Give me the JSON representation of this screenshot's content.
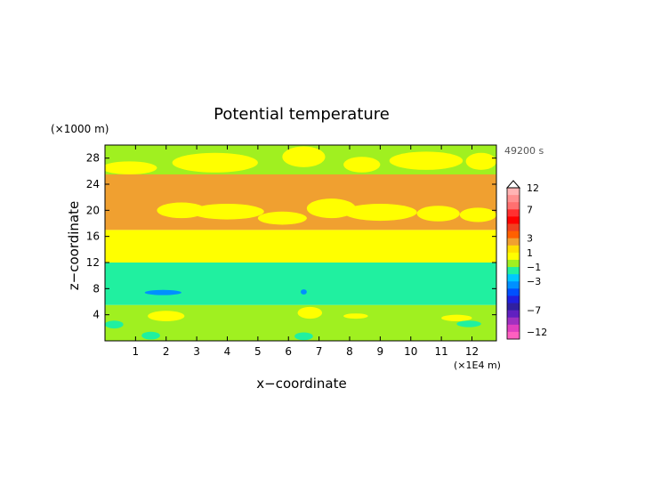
{
  "chart_data": {
    "type": "heatmap",
    "title": "Potential temperature",
    "xlabel": "x−coordinate",
    "ylabel": "z−coordinate",
    "x_unit": "(×1E4 m)",
    "y_unit": "(×1000 m)",
    "time_label": "49200 s",
    "xlim": [
      0,
      12.8
    ],
    "ylim": [
      0,
      30
    ],
    "x_ticks": [
      1,
      2,
      3,
      4,
      5,
      6,
      7,
      8,
      9,
      10,
      11,
      12
    ],
    "y_ticks": [
      4,
      8,
      12,
      16,
      20,
      24,
      28
    ],
    "grid": false,
    "colorbar": {
      "labeled_ticks": [
        12,
        7,
        3,
        1,
        -1,
        -3,
        -7,
        -12
      ],
      "levels": [
        {
          "value": 12,
          "color": "#ffb4b4"
        },
        {
          "value": 10,
          "color": "#ff9090"
        },
        {
          "value": 9,
          "color": "#ff7070"
        },
        {
          "value": 7,
          "color": "#ff3030"
        },
        {
          "value": 6,
          "color": "#ff0000"
        },
        {
          "value": 5,
          "color": "#f04020"
        },
        {
          "value": 4,
          "color": "#ff6000"
        },
        {
          "value": 3,
          "color": "#f0a030"
        },
        {
          "value": 2,
          "color": "#ffe000"
        },
        {
          "value": 1,
          "color": "#ffff00"
        },
        {
          "value": 0,
          "color": "#a0f020"
        },
        {
          "value": -1,
          "color": "#20f0a0"
        },
        {
          "value": -2,
          "color": "#00c8ff"
        },
        {
          "value": -3,
          "color": "#0090ff"
        },
        {
          "value": -4,
          "color": "#0050ff"
        },
        {
          "value": -5,
          "color": "#2020e0"
        },
        {
          "value": -6,
          "color": "#3020a0"
        },
        {
          "value": -7,
          "color": "#6020c0"
        },
        {
          "value": -8,
          "color": "#a030c0"
        },
        {
          "value": -10,
          "color": "#e040c0"
        },
        {
          "value": -12,
          "color": "#ff60c0"
        }
      ]
    },
    "bands": [
      {
        "z_from": 0,
        "z_to": 5.5,
        "color": "#a0f020"
      },
      {
        "z_from": 5.5,
        "z_to": 12.0,
        "color": "#20f0a0"
      },
      {
        "z_from": 12.0,
        "z_to": 17.0,
        "color": "#ffff00"
      },
      {
        "z_from": 17.0,
        "z_to": 25.5,
        "color": "#f0a030"
      },
      {
        "z_from": 25.5,
        "z_to": 30,
        "color": "#a0f020"
      }
    ],
    "blobs": [
      {
        "x": 2.5,
        "z": 20.0,
        "rx": 0.8,
        "rz": 1.2,
        "color": "#ffff00"
      },
      {
        "x": 4.0,
        "z": 19.8,
        "rx": 1.2,
        "rz": 1.2,
        "color": "#ffff00"
      },
      {
        "x": 5.8,
        "z": 18.8,
        "rx": 0.8,
        "rz": 1.0,
        "color": "#ffff00"
      },
      {
        "x": 7.4,
        "z": 20.3,
        "rx": 0.8,
        "rz": 1.5,
        "color": "#ffff00"
      },
      {
        "x": 9.0,
        "z": 19.7,
        "rx": 1.2,
        "rz": 1.3,
        "color": "#ffff00"
      },
      {
        "x": 10.9,
        "z": 19.5,
        "rx": 0.7,
        "rz": 1.2,
        "color": "#ffff00"
      },
      {
        "x": 12.2,
        "z": 19.3,
        "rx": 0.6,
        "rz": 1.1,
        "color": "#ffff00"
      },
      {
        "x": 0.8,
        "z": 26.5,
        "rx": 0.9,
        "rz": 1.0,
        "color": "#ffff00"
      },
      {
        "x": 3.6,
        "z": 27.3,
        "rx": 1.4,
        "rz": 1.5,
        "color": "#ffff00"
      },
      {
        "x": 6.5,
        "z": 28.2,
        "rx": 0.7,
        "rz": 1.6,
        "color": "#ffff00"
      },
      {
        "x": 8.4,
        "z": 27.0,
        "rx": 0.6,
        "rz": 1.2,
        "color": "#ffff00"
      },
      {
        "x": 10.5,
        "z": 27.6,
        "rx": 1.2,
        "rz": 1.4,
        "color": "#ffff00"
      },
      {
        "x": 12.3,
        "z": 27.5,
        "rx": 0.5,
        "rz": 1.3,
        "color": "#ffff00"
      },
      {
        "x": 1.9,
        "z": 7.4,
        "rx": 0.6,
        "rz": 0.4,
        "color": "#0090ff"
      },
      {
        "x": 6.5,
        "z": 7.5,
        "rx": 0.1,
        "rz": 0.4,
        "color": "#0090ff"
      },
      {
        "x": 6.7,
        "z": 4.3,
        "rx": 0.4,
        "rz": 0.9,
        "color": "#ffff00"
      },
      {
        "x": 2.0,
        "z": 3.8,
        "rx": 0.6,
        "rz": 0.8,
        "color": "#ffff00"
      },
      {
        "x": 8.2,
        "z": 3.8,
        "rx": 0.4,
        "rz": 0.4,
        "color": "#ffff00"
      },
      {
        "x": 11.5,
        "z": 3.5,
        "rx": 0.5,
        "rz": 0.5,
        "color": "#ffff00"
      },
      {
        "x": 0.3,
        "z": 2.5,
        "rx": 0.3,
        "rz": 0.6,
        "color": "#20f0a0"
      },
      {
        "x": 11.9,
        "z": 2.6,
        "rx": 0.4,
        "rz": 0.5,
        "color": "#20f0a0"
      },
      {
        "x": 1.5,
        "z": 0.8,
        "rx": 0.3,
        "rz": 0.6,
        "color": "#20f0a0"
      },
      {
        "x": 6.5,
        "z": 0.7,
        "rx": 0.3,
        "rz": 0.6,
        "color": "#20f0a0"
      }
    ]
  }
}
